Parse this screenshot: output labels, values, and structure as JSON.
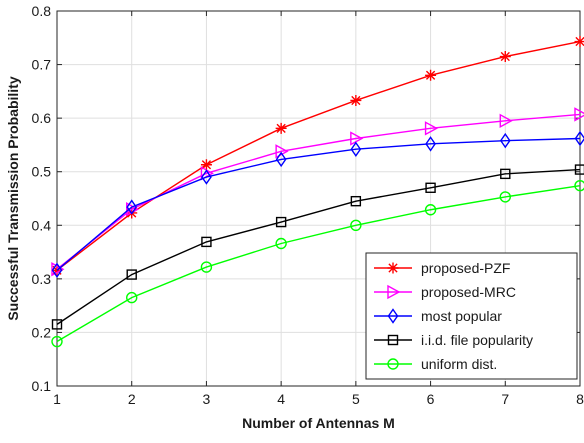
{
  "chart_data": {
    "type": "line",
    "title": "",
    "xlabel": "Number of Antennas M",
    "ylabel": "Successful Transmission Probability",
    "x": [
      1,
      2,
      3,
      4,
      5,
      6,
      7,
      8
    ],
    "xlim": [
      1,
      8
    ],
    "ylim": [
      0.1,
      0.8
    ],
    "xticks": [
      1,
      2,
      3,
      4,
      5,
      6,
      7,
      8
    ],
    "yticks": [
      0.1,
      0.2,
      0.3,
      0.4,
      0.5,
      0.6,
      0.7,
      0.8
    ],
    "grid": true,
    "legend_position": "bottom-right",
    "series": [
      {
        "name": "proposed-PZF",
        "color": "#ff0000",
        "marker": "asterisk",
        "values": [
          0.316,
          0.423,
          0.513,
          0.581,
          0.633,
          0.68,
          0.715,
          0.743
        ]
      },
      {
        "name": "proposed-MRC",
        "color": "#ff00ff",
        "marker": "triangle-right",
        "values": [
          0.318,
          0.43,
          0.497,
          0.538,
          0.562,
          0.581,
          0.595,
          0.607
        ]
      },
      {
        "name": "most popular",
        "color": "#0000ff",
        "marker": "diamond",
        "values": [
          0.316,
          0.434,
          0.49,
          0.523,
          0.542,
          0.552,
          0.558,
          0.562
        ]
      },
      {
        "name": "i.i.d. file popularity",
        "color": "#000000",
        "marker": "square",
        "values": [
          0.215,
          0.308,
          0.369,
          0.406,
          0.445,
          0.47,
          0.496,
          0.504
        ]
      },
      {
        "name": "uniform dist.",
        "color": "#00ff00",
        "marker": "circle",
        "values": [
          0.183,
          0.265,
          0.322,
          0.366,
          0.4,
          0.429,
          0.453,
          0.474
        ]
      }
    ]
  }
}
